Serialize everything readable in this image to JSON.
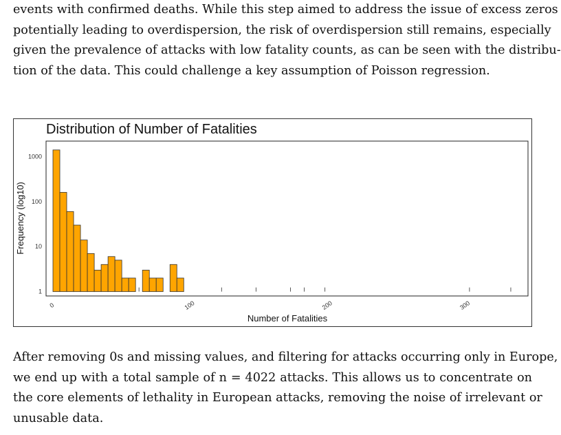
{
  "paragraph_top": {
    "lines": [
      "events with confirmed deaths. While this step aimed to address the issue of excess zeros",
      "potentially leading to overdispersion, the risk of overdispersion still remains, especially",
      "given the prevalence of attacks with low fatality counts, as can be seen with the distribu-",
      "tion of the data. This could challenge a key assumption of Poisson regression."
    ]
  },
  "paragraph_bottom": {
    "lines": [
      "After removing 0s and missing values, and filtering for attacks occurring only in Europe,",
      "we end up with a total sample of n = 4022 attacks. This allows us to concentrate on",
      "the core elements of lethality in European attacks, removing the noise of irrelevant or",
      "unusable data."
    ]
  },
  "chart_data": {
    "type": "bar",
    "title": "Distribution of Number of Fatalities",
    "xlabel": "Number of Fatalities",
    "ylabel": "Frequency (log10)",
    "y_scale": "log10",
    "xlim": [
      -5,
      345
    ],
    "ylim": [
      0.8,
      2200
    ],
    "x_ticks": [
      0,
      100,
      200,
      300
    ],
    "y_ticks": [
      1,
      10,
      100,
      1000
    ],
    "y_tick_labels": [
      "1",
      "10",
      "100",
      "1000"
    ],
    "bin_width": 5,
    "grid": false,
    "bar_color": "#FFA500",
    "bar_edge_color": "#333333",
    "bins": [
      {
        "x0": 0,
        "x1": 5,
        "count": 1400
      },
      {
        "x0": 5,
        "x1": 10,
        "count": 160
      },
      {
        "x0": 10,
        "x1": 15,
        "count": 60
      },
      {
        "x0": 15,
        "x1": 20,
        "count": 30
      },
      {
        "x0": 20,
        "x1": 25,
        "count": 14
      },
      {
        "x0": 25,
        "x1": 30,
        "count": 7
      },
      {
        "x0": 30,
        "x1": 35,
        "count": 3
      },
      {
        "x0": 35,
        "x1": 40,
        "count": 4
      },
      {
        "x0": 40,
        "x1": 45,
        "count": 6
      },
      {
        "x0": 45,
        "x1": 50,
        "count": 5
      },
      {
        "x0": 50,
        "x1": 55,
        "count": 2
      },
      {
        "x0": 55,
        "x1": 60,
        "count": 2
      },
      {
        "x0": 60,
        "x1": 65,
        "count": 1
      },
      {
        "x0": 65,
        "x1": 70,
        "count": 3
      },
      {
        "x0": 70,
        "x1": 75,
        "count": 2
      },
      {
        "x0": 75,
        "x1": 80,
        "count": 2
      },
      {
        "x0": 85,
        "x1": 90,
        "count": 4
      },
      {
        "x0": 90,
        "x1": 95,
        "count": 2
      },
      {
        "x0": 120,
        "x1": 125,
        "count": 1
      },
      {
        "x0": 145,
        "x1": 150,
        "count": 1
      },
      {
        "x0": 170,
        "x1": 175,
        "count": 1
      },
      {
        "x0": 180,
        "x1": 185,
        "count": 1
      },
      {
        "x0": 195,
        "x1": 200,
        "count": 1
      },
      {
        "x0": 300,
        "x1": 305,
        "count": 1
      },
      {
        "x0": 330,
        "x1": 335,
        "count": 1
      }
    ]
  }
}
